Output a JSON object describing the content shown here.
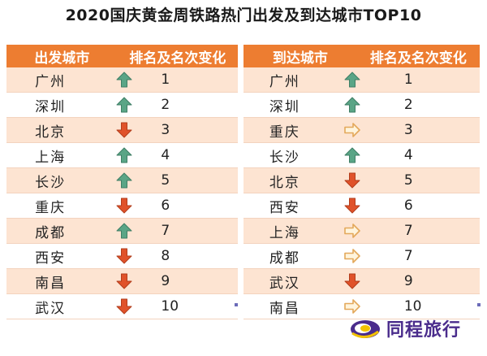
{
  "title": "2020国庆黄金周铁路热门出发及到达城市TOP10",
  "departure": {
    "header_city": "出发城市",
    "header_change": "排名及名次变化",
    "rows": [
      {
        "city": "广州",
        "rank": "1",
        "trend": "up"
      },
      {
        "city": "深圳",
        "rank": "2",
        "trend": "up"
      },
      {
        "city": "北京",
        "rank": "3",
        "trend": "down"
      },
      {
        "city": "上海",
        "rank": "4",
        "trend": "up"
      },
      {
        "city": "长沙",
        "rank": "5",
        "trend": "up"
      },
      {
        "city": "重庆",
        "rank": "6",
        "trend": "down"
      },
      {
        "city": "成都",
        "rank": "7",
        "trend": "up"
      },
      {
        "city": "西安",
        "rank": "8",
        "trend": "down"
      },
      {
        "city": "南昌",
        "rank": "9",
        "trend": "down"
      },
      {
        "city": "武汉",
        "rank": "10",
        "trend": "down"
      }
    ]
  },
  "arrival": {
    "header_city": "到达城市",
    "header_change": "排名及名次变化",
    "rows": [
      {
        "city": "广州",
        "rank": "1",
        "trend": "up"
      },
      {
        "city": "深圳",
        "rank": "2",
        "trend": "up"
      },
      {
        "city": "重庆",
        "rank": "3",
        "trend": "same"
      },
      {
        "city": "长沙",
        "rank": "4",
        "trend": "up"
      },
      {
        "city": "北京",
        "rank": "5",
        "trend": "down"
      },
      {
        "city": "西安",
        "rank": "6",
        "trend": "down"
      },
      {
        "city": "上海",
        "rank": "7",
        "trend": "same"
      },
      {
        "city": "成都",
        "rank": "7",
        "trend": "same"
      },
      {
        "city": "武汉",
        "rank": "9",
        "trend": "down"
      },
      {
        "city": "南昌",
        "rank": "10",
        "trend": "same"
      }
    ]
  },
  "brand": {
    "name": "同程旅行",
    "logo_icon": "tongcheng-logo-icon"
  },
  "colors": {
    "header": "#ed7d31",
    "row_alt": "#fde4d2",
    "up": "#5aa586",
    "down": "#e0522a",
    "same": "#e3a85a",
    "brand": "#4a2c8c"
  },
  "chart_data": [
    {
      "type": "table",
      "title": "2020国庆黄金周铁路热门出发及到达城市TOP10",
      "columns": [
        "出发城市",
        "排名及名次变化"
      ],
      "rows": [
        [
          "广州",
          "1",
          "上升"
        ],
        [
          "深圳",
          "2",
          "上升"
        ],
        [
          "北京",
          "3",
          "下降"
        ],
        [
          "上海",
          "4",
          "上升"
        ],
        [
          "长沙",
          "5",
          "上升"
        ],
        [
          "重庆",
          "6",
          "下降"
        ],
        [
          "成都",
          "7",
          "上升"
        ],
        [
          "西安",
          "8",
          "下降"
        ],
        [
          "南昌",
          "9",
          "下降"
        ],
        [
          "武汉",
          "10",
          "下降"
        ]
      ]
    },
    {
      "type": "table",
      "columns": [
        "到达城市",
        "排名及名次变化"
      ],
      "rows": [
        [
          "广州",
          "1",
          "上升"
        ],
        [
          "深圳",
          "2",
          "上升"
        ],
        [
          "重庆",
          "3",
          "持平"
        ],
        [
          "长沙",
          "4",
          "上升"
        ],
        [
          "北京",
          "5",
          "下降"
        ],
        [
          "西安",
          "6",
          "下降"
        ],
        [
          "上海",
          "7",
          "持平"
        ],
        [
          "成都",
          "7",
          "持平"
        ],
        [
          "武汉",
          "9",
          "下降"
        ],
        [
          "南昌",
          "10",
          "持平"
        ]
      ]
    }
  ]
}
